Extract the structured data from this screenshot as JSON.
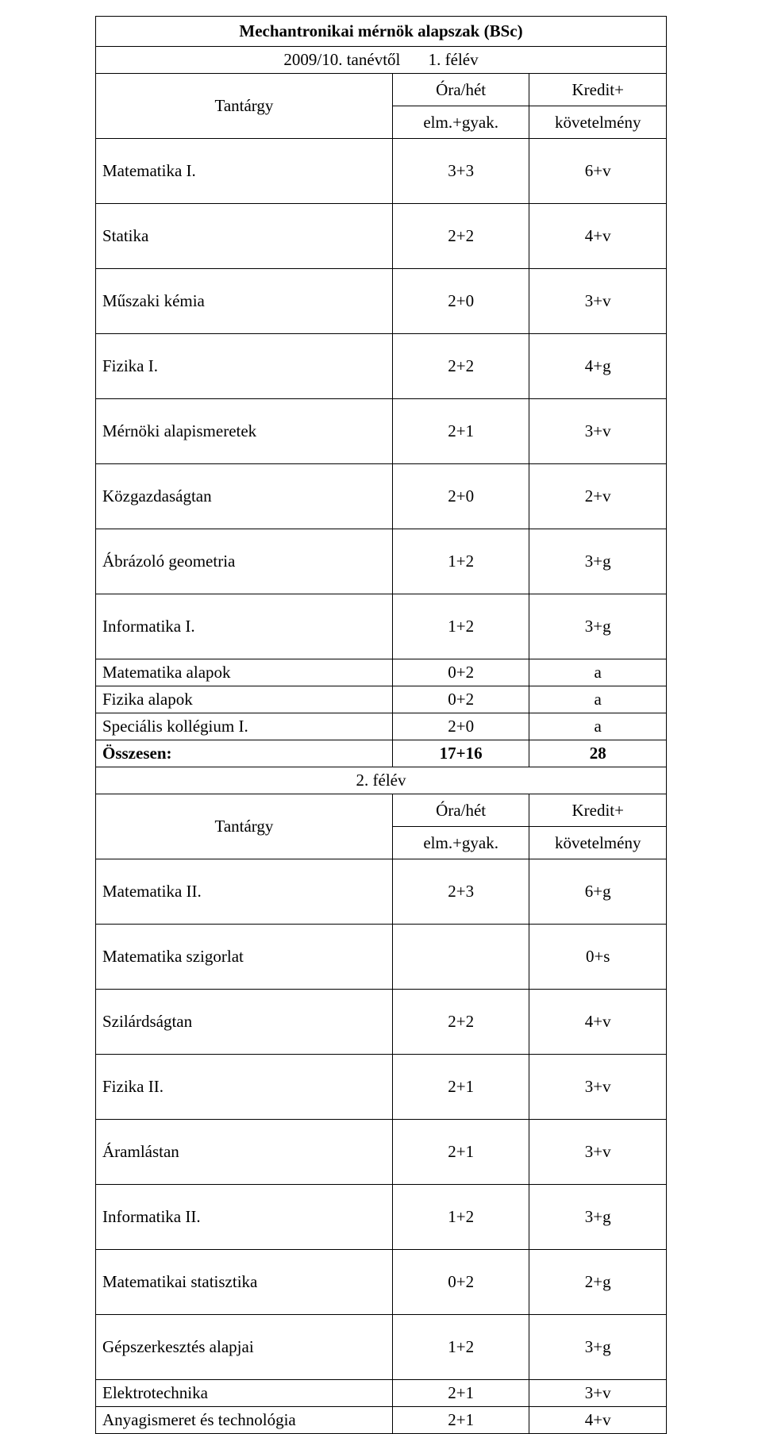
{
  "title": "Mechantronikai mérnök alapszak (BSc)",
  "year": "2009/10. tanévtől",
  "sem1_label": "1. félév",
  "sem2_label": "2. félév",
  "header": {
    "subject": "Tantárgy",
    "ora": "Óra/hét",
    "elm": "elm.+gyak.",
    "kredit": "Kredit+",
    "kov": "követelmény"
  },
  "sem1": {
    "rows_tall": [
      {
        "name": "Matematika I.",
        "ora": "3+3",
        "kredit": "6+v"
      },
      {
        "name": "Statika",
        "ora": "2+2",
        "kredit": "4+v"
      },
      {
        "name": "Műszaki kémia",
        "ora": "2+0",
        "kredit": "3+v"
      },
      {
        "name": "Fizika I.",
        "ora": "2+2",
        "kredit": "4+g"
      },
      {
        "name": "Mérnöki alapismeretek",
        "ora": "2+1",
        "kredit": "3+v"
      },
      {
        "name": "Közgazdaságtan",
        "ora": "2+0",
        "kredit": "2+v"
      },
      {
        "name": "Ábrázoló geometria",
        "ora": "1+2",
        "kredit": "3+g"
      },
      {
        "name": "Informatika I.",
        "ora": "1+2",
        "kredit": "3+g"
      }
    ],
    "rows_short": [
      {
        "name": "Matematika alapok",
        "ora": "0+2",
        "kredit": "a"
      },
      {
        "name": "Fizika alapok",
        "ora": "0+2",
        "kredit": "a"
      },
      {
        "name": "Speciális kollégium I.",
        "ora": "2+0",
        "kredit": "a"
      }
    ],
    "total": {
      "name": "Összesen:",
      "ora": "17+16",
      "kredit": "28"
    }
  },
  "sem2": {
    "rows_tall": [
      {
        "name": "Matematika II.",
        "ora": "2+3",
        "kredit": "6+g"
      },
      {
        "name": "Matematika szigorlat",
        "ora": "",
        "kredit": "0+s"
      },
      {
        "name": "Szilárdságtan",
        "ora": "2+2",
        "kredit": "4+v"
      },
      {
        "name": "Fizika II.",
        "ora": "2+1",
        "kredit": "3+v"
      },
      {
        "name": "Áramlástan",
        "ora": "2+1",
        "kredit": "3+v"
      },
      {
        "name": "Informatika II.",
        "ora": "1+2",
        "kredit": "3+g"
      },
      {
        "name": "Matematikai statisztika",
        "ora": "0+2",
        "kredit": "2+g"
      },
      {
        "name": "Gépszerkesztés alapjai",
        "ora": "1+2",
        "kredit": "3+g"
      }
    ],
    "rows_short": [
      {
        "name": "Elektrotechnika",
        "ora": "2+1",
        "kredit": "3+v"
      },
      {
        "name": "Anyagismeret és technológia",
        "ora": "2+1",
        "kredit": "4+v"
      }
    ]
  }
}
